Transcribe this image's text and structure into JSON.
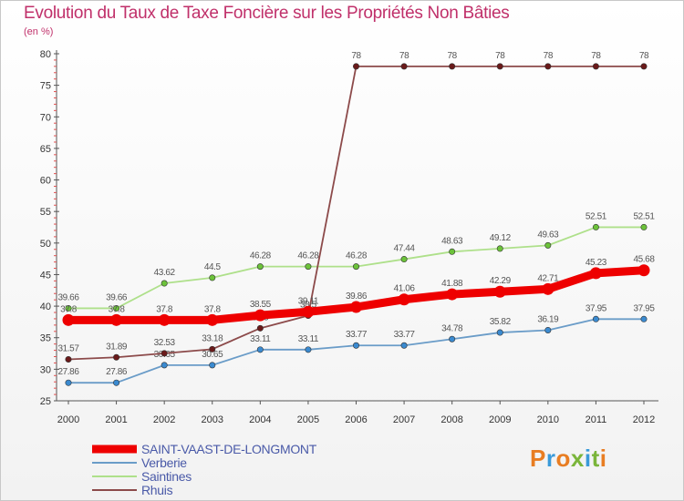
{
  "title": "Evolution du Taux de Taxe Foncière sur les Propriétés Non Bâties",
  "unit": "(en %)",
  "logo": {
    "text": "Proxiti",
    "colors": [
      "#e87d22",
      "#3a9ad9",
      "#e87d22",
      "#7ab53a",
      "#3a9ad9",
      "#7ab53a",
      "#e87d22"
    ]
  },
  "chart_data": {
    "type": "line",
    "title": "Evolution du Taux de Taxe Foncière sur les Propriétés Non Bâties",
    "ylabel": "(en %)",
    "xlabel": "",
    "ylim": [
      25,
      80
    ],
    "yticks": [
      25,
      30,
      35,
      40,
      45,
      50,
      55,
      60,
      65,
      70,
      75,
      80
    ],
    "categories": [
      "2000",
      "2001",
      "2002",
      "2003",
      "2004",
      "2005",
      "2006",
      "2007",
      "2008",
      "2009",
      "2010",
      "2011",
      "2012"
    ],
    "series": [
      {
        "name": "Verberie",
        "color": "#6a9cc8",
        "marker": "#3a8ad0",
        "values": [
          27.86,
          27.86,
          30.65,
          30.65,
          33.11,
          33.11,
          33.77,
          33.77,
          34.78,
          35.82,
          36.19,
          37.95,
          37.95
        ],
        "labels": [
          "27.86",
          "27.86",
          "30.65",
          "30.65",
          "33.11",
          "33.11",
          "33.77",
          "33.77",
          "34.78",
          "35.82",
          "36.19",
          "37.95",
          "37.95"
        ]
      },
      {
        "name": "Saintines",
        "color": "#aee08a",
        "marker": "#6cc23a",
        "values": [
          39.66,
          39.66,
          43.62,
          44.5,
          46.28,
          46.28,
          46.28,
          47.44,
          48.63,
          49.12,
          49.63,
          52.51,
          52.51
        ],
        "labels": [
          "39.66",
          "39.66",
          "43.62",
          "44.5",
          "46.28",
          "46.28",
          "46.28",
          "47.44",
          "48.63",
          "49.12",
          "49.63",
          "52.51",
          "52.51"
        ]
      },
      {
        "name": "Rhuis",
        "color": "#8c4a4a",
        "marker": "#6a1a1a",
        "values": [
          31.57,
          31.89,
          32.53,
          33.18,
          36.5,
          38.5,
          78,
          78,
          78,
          78,
          78,
          78,
          78
        ],
        "labels": [
          "31.57",
          "31.89",
          "32.53",
          "33.18",
          "36.5",
          "38.5",
          "78",
          "78",
          "78",
          "78",
          "78",
          "78",
          "78"
        ]
      },
      {
        "name": "SAINT-VAAST-DE-LONGMONT",
        "color": "#ee0000",
        "marker": "#ee0000",
        "values": [
          37.8,
          37.8,
          37.8,
          37.8,
          38.55,
          39.11,
          39.86,
          41.06,
          41.88,
          42.29,
          42.71,
          45.23,
          45.68
        ],
        "labels": [
          "37.8",
          "37.8",
          "37.8",
          "37.8",
          "38.55",
          "39.11",
          "39.86",
          "41.06",
          "41.88",
          "42.29",
          "42.71",
          "45.23",
          "45.68"
        ]
      }
    ],
    "legend": [
      "SAINT-VAAST-DE-LONGMONT",
      "Verberie",
      "Saintines",
      "Rhuis"
    ],
    "legend_position": "bottom-left",
    "grid": false
  }
}
